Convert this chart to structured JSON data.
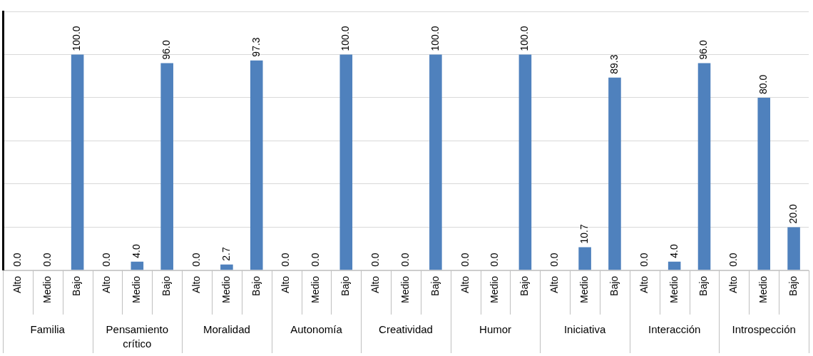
{
  "chart_data": {
    "type": "bar",
    "categories": [
      "Alto",
      "Medio",
      "Bajo",
      "Alto",
      "Medio",
      "Bajo",
      "Alto",
      "Medio",
      "Bajo",
      "Alto",
      "Medio",
      "Bajo",
      "Alto",
      "Medio",
      "Bajo",
      "Alto",
      "Medio",
      "Bajo",
      "Alto",
      "Medio",
      "Bajo",
      "Alto",
      "Medio",
      "Bajo",
      "Alto",
      "Medio",
      "Bajo"
    ],
    "values": [
      0.0,
      0.0,
      100.0,
      0.0,
      4.0,
      96.0,
      0.0,
      2.7,
      97.3,
      0.0,
      0.0,
      100.0,
      0.0,
      0.0,
      100.0,
      0.0,
      0.0,
      100.0,
      0.0,
      10.7,
      89.3,
      0.0,
      4.0,
      96.0,
      0.0,
      80.0,
      20.0
    ],
    "value_labels": [
      "0.0",
      "0.0",
      "100.0",
      "0.0",
      "4.0",
      "96.0",
      "0.0",
      "2.7",
      "97.3",
      "0.0",
      "0.0",
      "100.0",
      "0.0",
      "0.0",
      "100.0",
      "0.0",
      "0.0",
      "100.0",
      "0.0",
      "10.7",
      "89.3",
      "0.0",
      "4.0",
      "96.0",
      "0.0",
      "80.0",
      "20.0"
    ],
    "color": "#4f81bd",
    "ylim": [
      0,
      120
    ],
    "yticks": [
      {
        "value": 0,
        "label": null
      },
      {
        "value": 20,
        "label": null
      },
      {
        "value": 40,
        "label": null
      },
      {
        "value": 60,
        "label": null
      },
      {
        "value": 80,
        "label": null
      },
      {
        "value": 100,
        "label": null
      },
      {
        "value": 120,
        "label": null
      }
    ],
    "grid": "y",
    "tick_labels": "x",
    "legend": false,
    "annotations": [
      "Familia",
      "Pensamiento crítico",
      "Moralidad",
      "Autonomía",
      "Creatividad",
      "Humor",
      "Iniciativa",
      "Interacción",
      "Introspección"
    ]
  }
}
